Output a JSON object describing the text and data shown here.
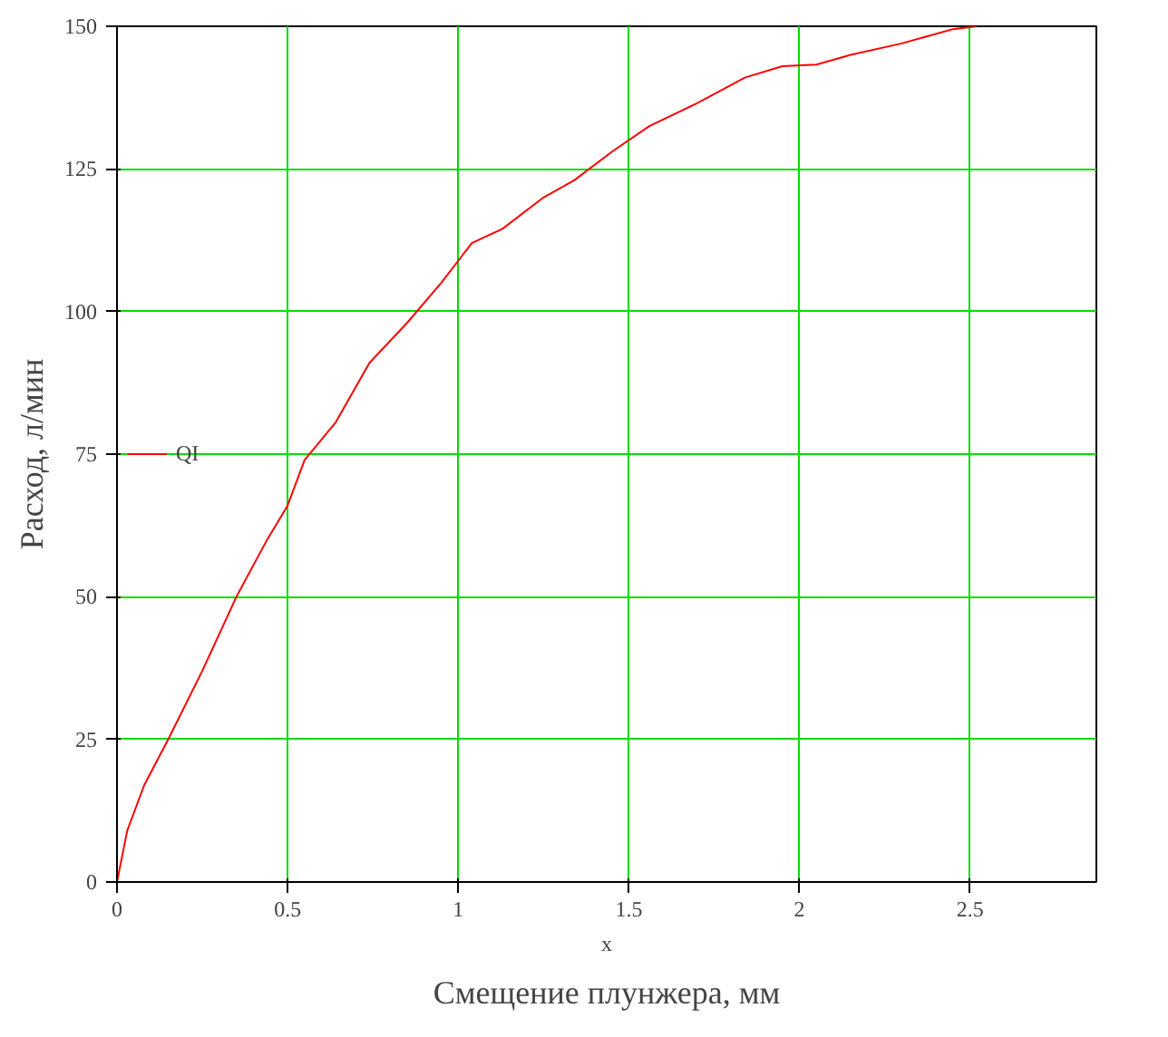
{
  "chart_data": {
    "type": "line",
    "xlabel": "x",
    "ylabel": "Расход, л/мин",
    "annotations": [
      "Смещение плунжера, мм"
    ],
    "x": [
      0,
      0.03,
      0.08,
      0.15,
      0.25,
      0.35,
      0.44,
      0.5,
      0.55,
      0.64,
      0.74,
      0.85,
      0.95,
      1.04,
      1.13,
      1.25,
      1.34,
      1.45,
      1.56,
      1.7,
      1.84,
      1.95,
      2.05,
      2.15,
      2.3,
      2.45,
      2.52
    ],
    "series": [
      {
        "name": "QI",
        "color": "#ff0000",
        "values": [
          0,
          9,
          17,
          25,
          37,
          50,
          60,
          66,
          74,
          80.5,
          91,
          98,
          105,
          112,
          114.5,
          120,
          123,
          128,
          132.5,
          136.5,
          141,
          143,
          143.3,
          145,
          147,
          149.5,
          150
        ]
      }
    ],
    "xlim": [
      0,
      2.87
    ],
    "ylim": [
      0,
      150
    ],
    "xticks": [
      0,
      0.5,
      1,
      1.5,
      2,
      2.5
    ],
    "yticks": [
      0,
      25,
      50,
      75,
      100,
      125,
      150
    ],
    "grid": true,
    "legend": "left",
    "line_style": "solid",
    "marker": "none"
  }
}
